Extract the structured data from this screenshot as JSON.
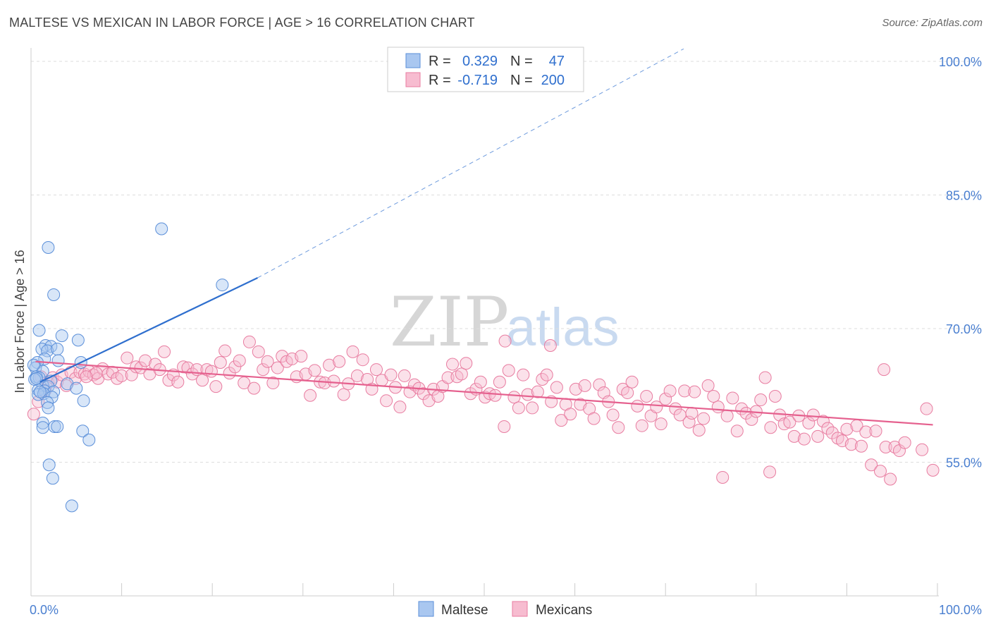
{
  "title": "MALTESE VS MEXICAN IN LABOR FORCE | AGE > 16 CORRELATION CHART",
  "source": "Source: ZipAtlas.com",
  "watermark": {
    "zip": "ZIP",
    "atlas": "atlas"
  },
  "colors": {
    "maltese_fill": "#a9c7f0",
    "maltese_stroke": "#5b8fd9",
    "maltese_line": "#2f6fce",
    "mexicans_fill": "#f7bcd0",
    "mexicans_stroke": "#e87ca0",
    "mexicans_line": "#e5608e",
    "tick_text": "#4a7fd0",
    "grid": "#dddddd"
  },
  "legend": {
    "rows": [
      {
        "r_label": "R =",
        "r_value": "0.329",
        "n_label": "N =",
        "n_value": "47"
      },
      {
        "r_label": "R =",
        "r_value": "-0.719",
        "n_label": "N =",
        "n_value": "200"
      }
    ]
  },
  "bottom_legend": [
    "Maltese",
    "Mexicans"
  ],
  "chart_data": {
    "type": "scatter",
    "title": "MALTESE VS MEXICAN IN LABOR FORCE | AGE > 16 CORRELATION CHART",
    "xlabel": "",
    "ylabel": "In Labor Force | Age > 16",
    "xlim": [
      0,
      100
    ],
    "ylim": [
      40,
      101.5
    ],
    "x_tick_labels": [
      {
        "value": 0,
        "label": "0.0%"
      },
      {
        "value": 100,
        "label": "100.0%"
      }
    ],
    "y_tick_labels": [
      {
        "value": 55,
        "label": "55.0%"
      },
      {
        "value": 70,
        "label": "70.0%"
      },
      {
        "value": 85,
        "label": "85.0%"
      },
      {
        "value": 100,
        "label": "100.0%"
      }
    ],
    "grid": "horizontal dashed",
    "legend_position": "top-center",
    "series": [
      {
        "name": "Maltese",
        "r": 0.329,
        "n": 47,
        "trend": {
          "x_start": 1.0,
          "x_end": 25.0,
          "y_start": 64.0,
          "y_end": 75.7,
          "dashed_to_x": 72.0,
          "dashed_to_y": 101.4
        },
        "points": [
          [
            1.9,
            79.1
          ],
          [
            14.4,
            81.2
          ],
          [
            21.1,
            74.9
          ],
          [
            2.5,
            73.8
          ],
          [
            0.9,
            69.8
          ],
          [
            3.4,
            69.2
          ],
          [
            1.6,
            68.1
          ],
          [
            2.2,
            68.0
          ],
          [
            1.2,
            67.7
          ],
          [
            1.8,
            67.5
          ],
          [
            2.9,
            67.7
          ],
          [
            5.2,
            68.7
          ],
          [
            1.5,
            66.6
          ],
          [
            0.7,
            66.2
          ],
          [
            3.0,
            66.4
          ],
          [
            5.5,
            66.2
          ],
          [
            0.5,
            65.6
          ],
          [
            1.3,
            65.2
          ],
          [
            0.6,
            64.6
          ],
          [
            0.9,
            64.5
          ],
          [
            2.2,
            64.1
          ],
          [
            1.3,
            63.6
          ],
          [
            1.9,
            63.5
          ],
          [
            4.0,
            63.8
          ],
          [
            0.8,
            63.1
          ],
          [
            1.5,
            63.0
          ],
          [
            2.5,
            62.9
          ],
          [
            5.0,
            63.3
          ],
          [
            0.8,
            62.6
          ],
          [
            1.4,
            62.7
          ],
          [
            2.3,
            62.3
          ],
          [
            1.8,
            61.7
          ],
          [
            5.8,
            61.9
          ],
          [
            1.9,
            61.1
          ],
          [
            0.4,
            64.3
          ],
          [
            1.3,
            59.4
          ],
          [
            2.6,
            59.0
          ],
          [
            2.9,
            59.0
          ],
          [
            1.3,
            58.9
          ],
          [
            5.7,
            58.5
          ],
          [
            6.4,
            57.5
          ],
          [
            2.0,
            54.7
          ],
          [
            2.4,
            53.2
          ],
          [
            4.5,
            50.1
          ],
          [
            0.6,
            64.4
          ],
          [
            1.0,
            62.9
          ],
          [
            0.3,
            65.9
          ]
        ]
      },
      {
        "name": "Mexicans",
        "r": -0.719,
        "n": 200,
        "trend": {
          "x_start": 0.5,
          "x_end": 99.5,
          "y_start": 66.3,
          "y_end": 59.2
        },
        "points": [
          [
            0.3,
            60.4
          ],
          [
            0.8,
            61.8
          ],
          [
            1.1,
            64.6
          ],
          [
            1.6,
            63.1
          ],
          [
            1.9,
            63.9
          ],
          [
            2.4,
            64.5
          ],
          [
            2.9,
            64.0
          ],
          [
            3.4,
            64.8
          ],
          [
            3.9,
            63.6
          ],
          [
            4.4,
            65.1
          ],
          [
            4.9,
            64.4
          ],
          [
            5.4,
            65.1
          ],
          [
            5.9,
            64.9
          ],
          [
            6.4,
            65.2
          ],
          [
            6.9,
            64.8
          ],
          [
            7.4,
            64.4
          ],
          [
            7.9,
            65.5
          ],
          [
            8.5,
            64.9
          ],
          [
            9.0,
            65.1
          ],
          [
            9.5,
            64.4
          ],
          [
            10.0,
            64.7
          ],
          [
            10.6,
            66.7
          ],
          [
            11.1,
            64.8
          ],
          [
            11.6,
            65.7
          ],
          [
            12.1,
            65.6
          ],
          [
            12.6,
            66.4
          ],
          [
            13.1,
            64.9
          ],
          [
            13.7,
            66.0
          ],
          [
            14.2,
            65.4
          ],
          [
            14.7,
            67.4
          ],
          [
            15.2,
            64.2
          ],
          [
            15.7,
            64.8
          ],
          [
            16.2,
            64.0
          ],
          [
            16.8,
            65.7
          ],
          [
            17.3,
            65.6
          ],
          [
            17.8,
            64.9
          ],
          [
            18.3,
            65.4
          ],
          [
            18.9,
            64.2
          ],
          [
            19.4,
            65.4
          ],
          [
            19.9,
            65.2
          ],
          [
            20.4,
            63.5
          ],
          [
            20.9,
            66.2
          ],
          [
            21.4,
            67.5
          ],
          [
            21.9,
            65.0
          ],
          [
            22.5,
            65.7
          ],
          [
            23.0,
            66.4
          ],
          [
            23.5,
            63.9
          ],
          [
            24.1,
            68.5
          ],
          [
            24.6,
            63.3
          ],
          [
            25.1,
            67.4
          ],
          [
            25.6,
            65.4
          ],
          [
            26.1,
            66.3
          ],
          [
            26.7,
            63.9
          ],
          [
            27.2,
            65.6
          ],
          [
            27.7,
            66.9
          ],
          [
            28.2,
            66.3
          ],
          [
            28.8,
            66.6
          ],
          [
            29.3,
            64.6
          ],
          [
            29.8,
            66.9
          ],
          [
            30.3,
            64.9
          ],
          [
            30.8,
            62.5
          ],
          [
            31.3,
            65.3
          ],
          [
            31.9,
            64.0
          ],
          [
            32.4,
            63.9
          ],
          [
            32.9,
            65.9
          ],
          [
            33.4,
            64.1
          ],
          [
            34.0,
            66.3
          ],
          [
            34.5,
            62.6
          ],
          [
            35.0,
            63.8
          ],
          [
            35.5,
            67.4
          ],
          [
            36.0,
            64.7
          ],
          [
            36.6,
            66.5
          ],
          [
            37.1,
            64.3
          ],
          [
            37.6,
            63.2
          ],
          [
            38.1,
            65.4
          ],
          [
            38.7,
            64.2
          ],
          [
            39.2,
            61.9
          ],
          [
            39.7,
            64.8
          ],
          [
            40.2,
            63.4
          ],
          [
            40.7,
            61.2
          ],
          [
            41.2,
            64.7
          ],
          [
            41.8,
            62.9
          ],
          [
            42.3,
            63.7
          ],
          [
            42.8,
            63.3
          ],
          [
            43.3,
            62.7
          ],
          [
            43.9,
            61.9
          ],
          [
            44.4,
            63.2
          ],
          [
            44.9,
            62.4
          ],
          [
            45.4,
            63.5
          ],
          [
            46.0,
            64.5
          ],
          [
            46.5,
            66.0
          ],
          [
            47.0,
            64.6
          ],
          [
            47.5,
            64.9
          ],
          [
            48.0,
            66.1
          ],
          [
            48.5,
            62.7
          ],
          [
            49.1,
            63.2
          ],
          [
            49.6,
            64.0
          ],
          [
            50.1,
            62.3
          ],
          [
            50.6,
            62.7
          ],
          [
            51.2,
            62.5
          ],
          [
            51.7,
            64.0
          ],
          [
            52.2,
            59.0
          ],
          [
            52.7,
            65.3
          ],
          [
            53.3,
            62.3
          ],
          [
            53.8,
            61.1
          ],
          [
            54.3,
            64.8
          ],
          [
            54.8,
            62.6
          ],
          [
            55.3,
            61.1
          ],
          [
            55.9,
            62.9
          ],
          [
            56.4,
            64.3
          ],
          [
            56.9,
            64.8
          ],
          [
            57.4,
            61.8
          ],
          [
            58.0,
            63.4
          ],
          [
            58.5,
            59.7
          ],
          [
            59.0,
            61.5
          ],
          [
            59.5,
            60.4
          ],
          [
            60.1,
            63.2
          ],
          [
            60.6,
            61.5
          ],
          [
            61.1,
            63.6
          ],
          [
            61.6,
            61.0
          ],
          [
            62.1,
            59.9
          ],
          [
            62.7,
            63.7
          ],
          [
            63.2,
            62.8
          ],
          [
            63.7,
            61.8
          ],
          [
            64.2,
            60.3
          ],
          [
            64.8,
            58.9
          ],
          [
            65.3,
            63.2
          ],
          [
            65.8,
            62.8
          ],
          [
            66.3,
            64.0
          ],
          [
            66.9,
            61.3
          ],
          [
            67.4,
            59.1
          ],
          [
            67.9,
            62.4
          ],
          [
            68.4,
            60.2
          ],
          [
            69.0,
            61.2
          ],
          [
            69.5,
            59.3
          ],
          [
            70.0,
            62.1
          ],
          [
            70.5,
            63.0
          ],
          [
            71.1,
            61.0
          ],
          [
            71.6,
            60.3
          ],
          [
            72.1,
            63.0
          ],
          [
            72.6,
            59.5
          ],
          [
            73.2,
            62.9
          ],
          [
            73.7,
            58.6
          ],
          [
            74.2,
            59.9
          ],
          [
            74.7,
            63.6
          ],
          [
            75.3,
            62.4
          ],
          [
            75.8,
            61.2
          ],
          [
            76.3,
            53.3
          ],
          [
            76.8,
            60.2
          ],
          [
            77.4,
            62.2
          ],
          [
            77.9,
            58.5
          ],
          [
            78.4,
            61.0
          ],
          [
            78.9,
            60.5
          ],
          [
            79.5,
            59.8
          ],
          [
            80.0,
            60.7
          ],
          [
            80.5,
            62.0
          ],
          [
            81.0,
            64.5
          ],
          [
            81.6,
            58.9
          ],
          [
            82.1,
            62.4
          ],
          [
            82.6,
            60.3
          ],
          [
            83.1,
            59.3
          ],
          [
            83.7,
            59.5
          ],
          [
            84.2,
            57.9
          ],
          [
            84.7,
            60.2
          ],
          [
            85.3,
            57.6
          ],
          [
            85.8,
            59.4
          ],
          [
            86.3,
            60.3
          ],
          [
            86.8,
            57.9
          ],
          [
            87.4,
            59.6
          ],
          [
            87.9,
            58.8
          ],
          [
            88.4,
            58.3
          ],
          [
            89.0,
            57.7
          ],
          [
            89.5,
            57.4
          ],
          [
            90.0,
            58.7
          ],
          [
            90.5,
            57.0
          ],
          [
            91.1,
            59.1
          ],
          [
            91.6,
            56.8
          ],
          [
            92.1,
            58.4
          ],
          [
            92.7,
            54.7
          ],
          [
            93.2,
            58.5
          ],
          [
            93.7,
            54.0
          ],
          [
            94.3,
            56.7
          ],
          [
            94.8,
            53.1
          ],
          [
            95.3,
            56.7
          ],
          [
            95.8,
            56.3
          ],
          [
            96.4,
            57.2
          ],
          [
            72.9,
            60.5
          ],
          [
            81.5,
            53.9
          ],
          [
            99.5,
            54.1
          ],
          [
            98.3,
            56.4
          ],
          [
            98.8,
            61.0
          ],
          [
            57.3,
            68.1
          ],
          [
            94.1,
            65.4
          ],
          [
            52.3,
            68.6
          ],
          [
            7.2,
            65.0
          ],
          [
            6.1,
            64.6
          ]
        ]
      }
    ]
  }
}
